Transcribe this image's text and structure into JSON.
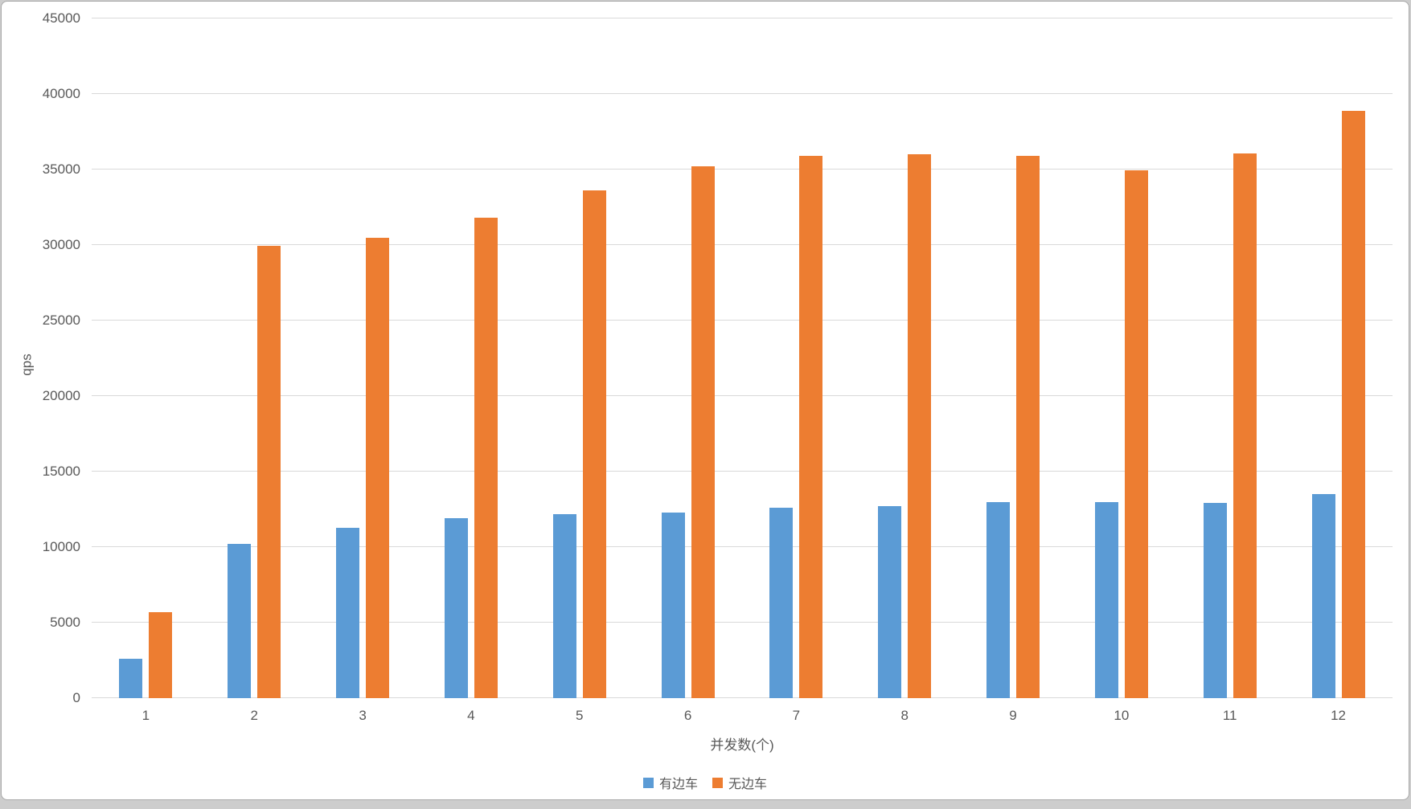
{
  "chart_data": {
    "type": "bar",
    "title": "",
    "xlabel": "并发数(个)",
    "ylabel": "qps",
    "categories": [
      "1",
      "2",
      "3",
      "4",
      "5",
      "6",
      "7",
      "8",
      "9",
      "10",
      "11",
      "12"
    ],
    "series": [
      {
        "name": "有边车",
        "color": "#5B9BD5",
        "values": [
          2600,
          10200,
          11300,
          11900,
          12200,
          12300,
          12600,
          12700,
          13000,
          13000,
          12950,
          13500
        ]
      },
      {
        "name": "无边车",
        "color": "#ED7D31",
        "values": [
          5700,
          29950,
          30500,
          31800,
          33600,
          35200,
          35900,
          36000,
          35900,
          34950,
          36050,
          38900
        ]
      }
    ],
    "ylim": [
      0,
      45000
    ],
    "ytick_step": 5000,
    "ytick_labels": [
      "0",
      "5000",
      "10000",
      "15000",
      "20000",
      "25000",
      "30000",
      "35000",
      "40000",
      "45000"
    ],
    "grid": true,
    "legend_position": "bottom"
  },
  "colors": {
    "gridline": "#d9d9d9",
    "axis_text": "#595959",
    "panel_background": "#ffffff",
    "panel_border": "#a9a9a9",
    "page_background": "#cdcdcd"
  }
}
